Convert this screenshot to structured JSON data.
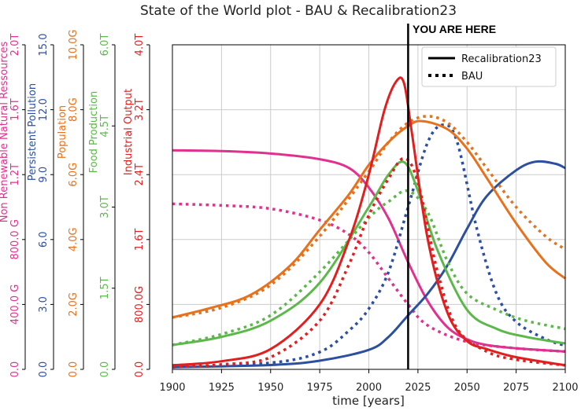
{
  "chart_data": {
    "type": "line",
    "title": "State of the World plot - BAU & Recalibration23",
    "xlabel": "time [years]",
    "xlim": [
      1900,
      2100
    ],
    "xticks": [
      "1900",
      "1925",
      "1950",
      "1975",
      "2000",
      "2025",
      "2050",
      "2075",
      "2100"
    ],
    "legend": [
      "Recalibration23",
      "BAU"
    ],
    "annotation": {
      "label": "YOU ARE HERE",
      "x": 2020
    },
    "axes": [
      {
        "name": "Non Renewable Natural Ressources",
        "color": "#e0318f",
        "ylim": [
          0,
          2000
        ],
        "ticks": [
          "0.0",
          "400.0 G",
          "800.0 G",
          "1.2T",
          "1.6T",
          "2.0T"
        ]
      },
      {
        "name": "Persistent Pollution",
        "color": "#2c4fa0",
        "ylim": [
          0,
          15
        ],
        "ticks": [
          "0.0",
          "3.0",
          "6.0",
          "9.0",
          "12.0",
          "15.0"
        ]
      },
      {
        "name": "Population",
        "color": "#e6721e",
        "ylim": [
          0,
          10
        ],
        "ticks": [
          "0.0",
          "2.0G",
          "4.0G",
          "6.0G",
          "8.0G",
          "10.0G"
        ]
      },
      {
        "name": "Food Production",
        "color": "#5cb84a",
        "ylim": [
          0,
          6
        ],
        "ticks": [
          "0.0",
          "1.5T",
          "3.0T",
          "4.5T",
          "6.0T"
        ]
      },
      {
        "name": "Industrial Output",
        "color": "#e02020",
        "ylim": [
          0,
          4
        ],
        "ticks": [
          "0.0",
          "800.0G",
          "1.6T",
          "2.4T",
          "3.2T",
          "4.0T"
        ]
      }
    ],
    "series": [
      {
        "name": "Non Renewable Natural Ressources",
        "scenario": "Recalibration23",
        "axis": 0,
        "style": "solid",
        "points": [
          [
            1900,
            1350
          ],
          [
            1925,
            1345
          ],
          [
            1950,
            1330
          ],
          [
            1975,
            1295
          ],
          [
            1990,
            1240
          ],
          [
            2000,
            1120
          ],
          [
            2010,
            930
          ],
          [
            2020,
            660
          ],
          [
            2030,
            420
          ],
          [
            2040,
            260
          ],
          [
            2050,
            185
          ],
          [
            2060,
            150
          ],
          [
            2075,
            130
          ],
          [
            2100,
            110
          ]
        ]
      },
      {
        "name": "Non Renewable Natural Ressources",
        "scenario": "BAU",
        "axis": 0,
        "style": "dotted",
        "points": [
          [
            1900,
            1020
          ],
          [
            1925,
            1010
          ],
          [
            1950,
            990
          ],
          [
            1975,
            920
          ],
          [
            1990,
            830
          ],
          [
            2000,
            720
          ],
          [
            2010,
            560
          ],
          [
            2020,
            400
          ],
          [
            2030,
            270
          ],
          [
            2050,
            170
          ],
          [
            2075,
            130
          ],
          [
            2100,
            110
          ]
        ]
      },
      {
        "name": "Persistent Pollution",
        "scenario": "Recalibration23",
        "axis": 1,
        "style": "solid",
        "points": [
          [
            1900,
            0.1
          ],
          [
            1950,
            0.2
          ],
          [
            1975,
            0.4
          ],
          [
            2000,
            0.9
          ],
          [
            2010,
            1.5
          ],
          [
            2020,
            2.5
          ],
          [
            2030,
            3.5
          ],
          [
            2040,
            4.8
          ],
          [
            2050,
            6.5
          ],
          [
            2060,
            8.0
          ],
          [
            2075,
            9.2
          ],
          [
            2085,
            9.6
          ],
          [
            2095,
            9.5
          ],
          [
            2100,
            9.3
          ]
        ]
      },
      {
        "name": "Persistent Pollution",
        "scenario": "BAU",
        "axis": 1,
        "style": "dotted",
        "points": [
          [
            1900,
            0.1
          ],
          [
            1950,
            0.3
          ],
          [
            1975,
            0.8
          ],
          [
            1990,
            1.8
          ],
          [
            2000,
            2.8
          ],
          [
            2010,
            4.5
          ],
          [
            2020,
            7.5
          ],
          [
            2030,
            10.5
          ],
          [
            2038,
            11.3
          ],
          [
            2045,
            10.5
          ],
          [
            2055,
            6.5
          ],
          [
            2065,
            3.5
          ],
          [
            2075,
            2.2
          ],
          [
            2090,
            1.4
          ],
          [
            2100,
            1.1
          ]
        ]
      },
      {
        "name": "Population",
        "scenario": "Recalibration23",
        "axis": 2,
        "style": "solid",
        "points": [
          [
            1900,
            1.6
          ],
          [
            1920,
            1.9
          ],
          [
            1940,
            2.3
          ],
          [
            1960,
            3.2
          ],
          [
            1975,
            4.3
          ],
          [
            1990,
            5.4
          ],
          [
            2000,
            6.3
          ],
          [
            2010,
            7.0
          ],
          [
            2020,
            7.5
          ],
          [
            2027,
            7.65
          ],
          [
            2040,
            7.4
          ],
          [
            2050,
            6.8
          ],
          [
            2060,
            5.9
          ],
          [
            2075,
            4.5
          ],
          [
            2090,
            3.3
          ],
          [
            2100,
            2.8
          ]
        ]
      },
      {
        "name": "Population",
        "scenario": "BAU",
        "axis": 2,
        "style": "dotted",
        "points": [
          [
            1900,
            1.6
          ],
          [
            1925,
            1.9
          ],
          [
            1950,
            2.6
          ],
          [
            1975,
            4.1
          ],
          [
            2000,
            6.1
          ],
          [
            2010,
            7.0
          ],
          [
            2020,
            7.6
          ],
          [
            2030,
            7.8
          ],
          [
            2040,
            7.6
          ],
          [
            2050,
            7.0
          ],
          [
            2060,
            6.2
          ],
          [
            2075,
            5.0
          ],
          [
            2090,
            4.1
          ],
          [
            2100,
            3.7
          ]
        ]
      },
      {
        "name": "Food Production",
        "scenario": "Recalibration23",
        "axis": 3,
        "style": "solid",
        "points": [
          [
            1900,
            0.45
          ],
          [
            1925,
            0.6
          ],
          [
            1950,
            0.9
          ],
          [
            1975,
            1.6
          ],
          [
            2000,
            3.0
          ],
          [
            2010,
            3.6
          ],
          [
            2018,
            3.83
          ],
          [
            2025,
            3.3
          ],
          [
            2035,
            2.2
          ],
          [
            2050,
            1.1
          ],
          [
            2065,
            0.75
          ],
          [
            2080,
            0.6
          ],
          [
            2100,
            0.48
          ]
        ]
      },
      {
        "name": "Food Production",
        "scenario": "BAU",
        "axis": 3,
        "style": "dotted",
        "points": [
          [
            1900,
            0.45
          ],
          [
            1925,
            0.65
          ],
          [
            1950,
            1.0
          ],
          [
            1975,
            1.8
          ],
          [
            2000,
            2.8
          ],
          [
            2010,
            3.1
          ],
          [
            2020,
            3.3
          ],
          [
            2030,
            2.9
          ],
          [
            2040,
            2.0
          ],
          [
            2050,
            1.4
          ],
          [
            2065,
            1.1
          ],
          [
            2080,
            0.9
          ],
          [
            2100,
            0.75
          ]
        ]
      },
      {
        "name": "Industrial Output",
        "scenario": "Recalibration23",
        "axis": 4,
        "style": "solid",
        "points": [
          [
            1900,
            0.05
          ],
          [
            1925,
            0.1
          ],
          [
            1950,
            0.25
          ],
          [
            1975,
            0.8
          ],
          [
            1990,
            1.6
          ],
          [
            2000,
            2.4
          ],
          [
            2008,
            3.2
          ],
          [
            2014,
            3.55
          ],
          [
            2018,
            3.52
          ],
          [
            2022,
            2.9
          ],
          [
            2030,
            1.6
          ],
          [
            2040,
            0.7
          ],
          [
            2050,
            0.35
          ],
          [
            2060,
            0.25
          ],
          [
            2075,
            0.15
          ],
          [
            2100,
            0.05
          ]
        ]
      },
      {
        "name": "Industrial Output",
        "scenario": "BAU",
        "axis": 4,
        "style": "dotted",
        "points": [
          [
            1900,
            0.03
          ],
          [
            1925,
            0.06
          ],
          [
            1950,
            0.15
          ],
          [
            1975,
            0.6
          ],
          [
            1990,
            1.3
          ],
          [
            2000,
            1.9
          ],
          [
            2010,
            2.35
          ],
          [
            2018,
            2.6
          ],
          [
            2025,
            2.3
          ],
          [
            2035,
            1.2
          ],
          [
            2045,
            0.5
          ],
          [
            2060,
            0.22
          ],
          [
            2075,
            0.12
          ],
          [
            2100,
            0.05
          ]
        ]
      }
    ]
  }
}
